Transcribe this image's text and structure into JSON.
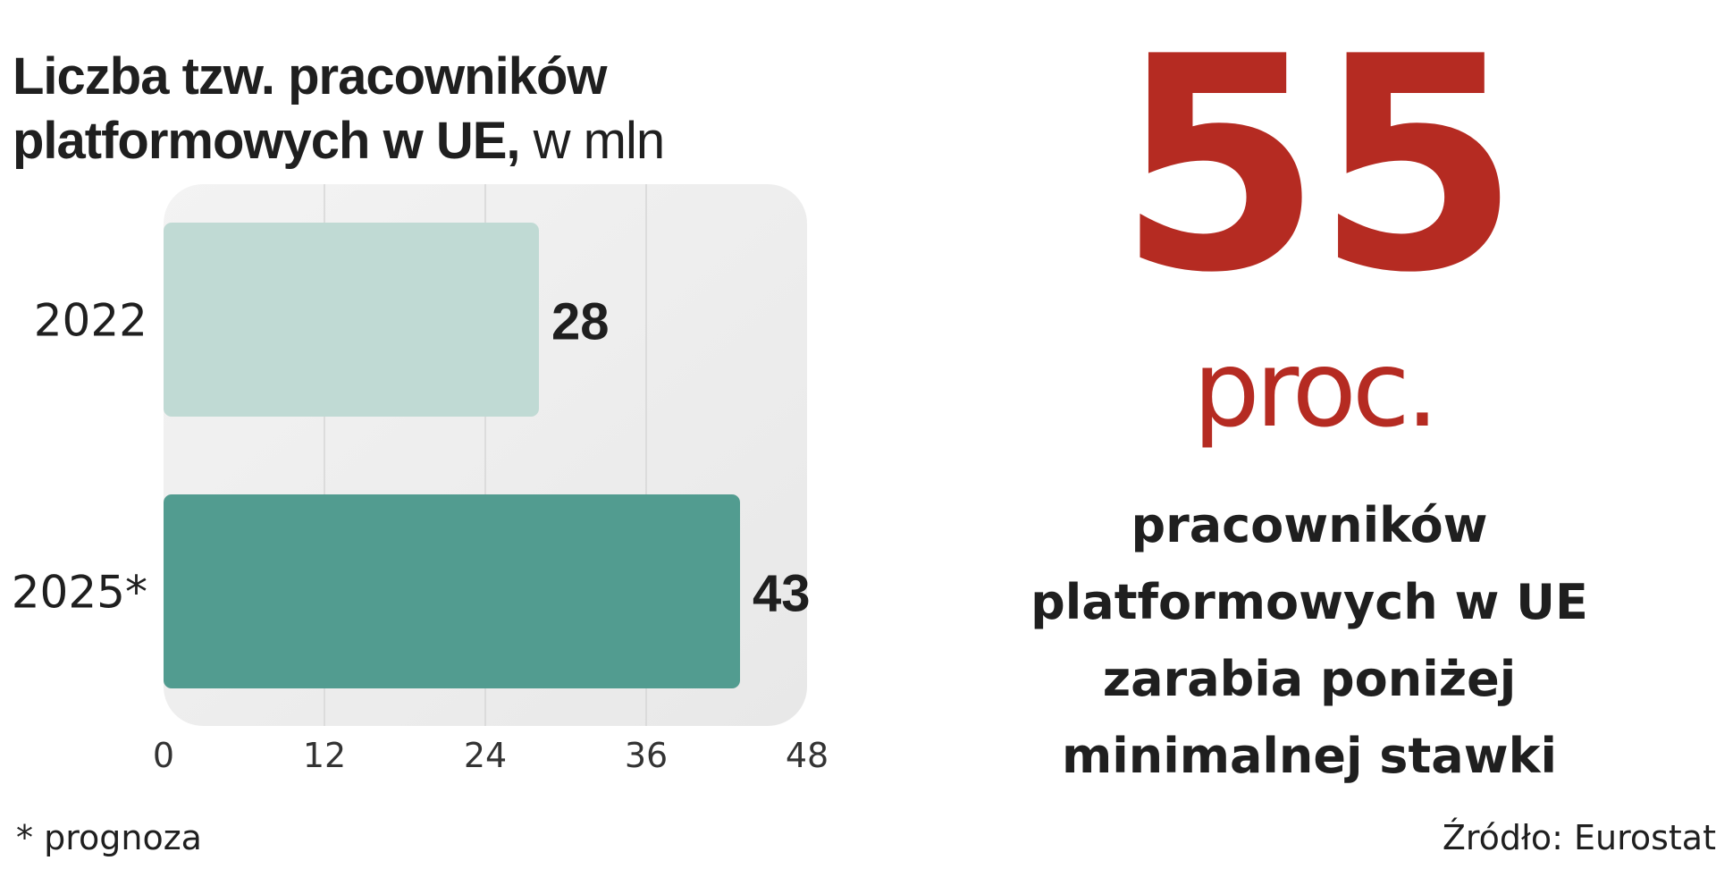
{
  "title": {
    "bold": "Liczba tzw. pracowników platformowych w UE,",
    "unit": " w mln"
  },
  "chart_data": {
    "type": "bar",
    "orientation": "horizontal",
    "title": "Liczba tzw. pracowników platformowych w UE, w mln",
    "categories": [
      "2022",
      "2025*"
    ],
    "values": [
      28,
      43
    ],
    "data_labels": [
      "28",
      "43"
    ],
    "xlim": [
      0,
      48
    ],
    "xticks": [
      "0",
      "12",
      "24",
      "36",
      "48"
    ],
    "grid": true,
    "colors": [
      "#c0dad4",
      "#529c90"
    ]
  },
  "highlight": {
    "number": "55",
    "unit": "proc.",
    "text": "pracowników platformowych w UE zarabia poniżej minimalnej stawki",
    "color": "#b52b22"
  },
  "footnote": "* prognoza",
  "source": "Źródło: Eurostat"
}
